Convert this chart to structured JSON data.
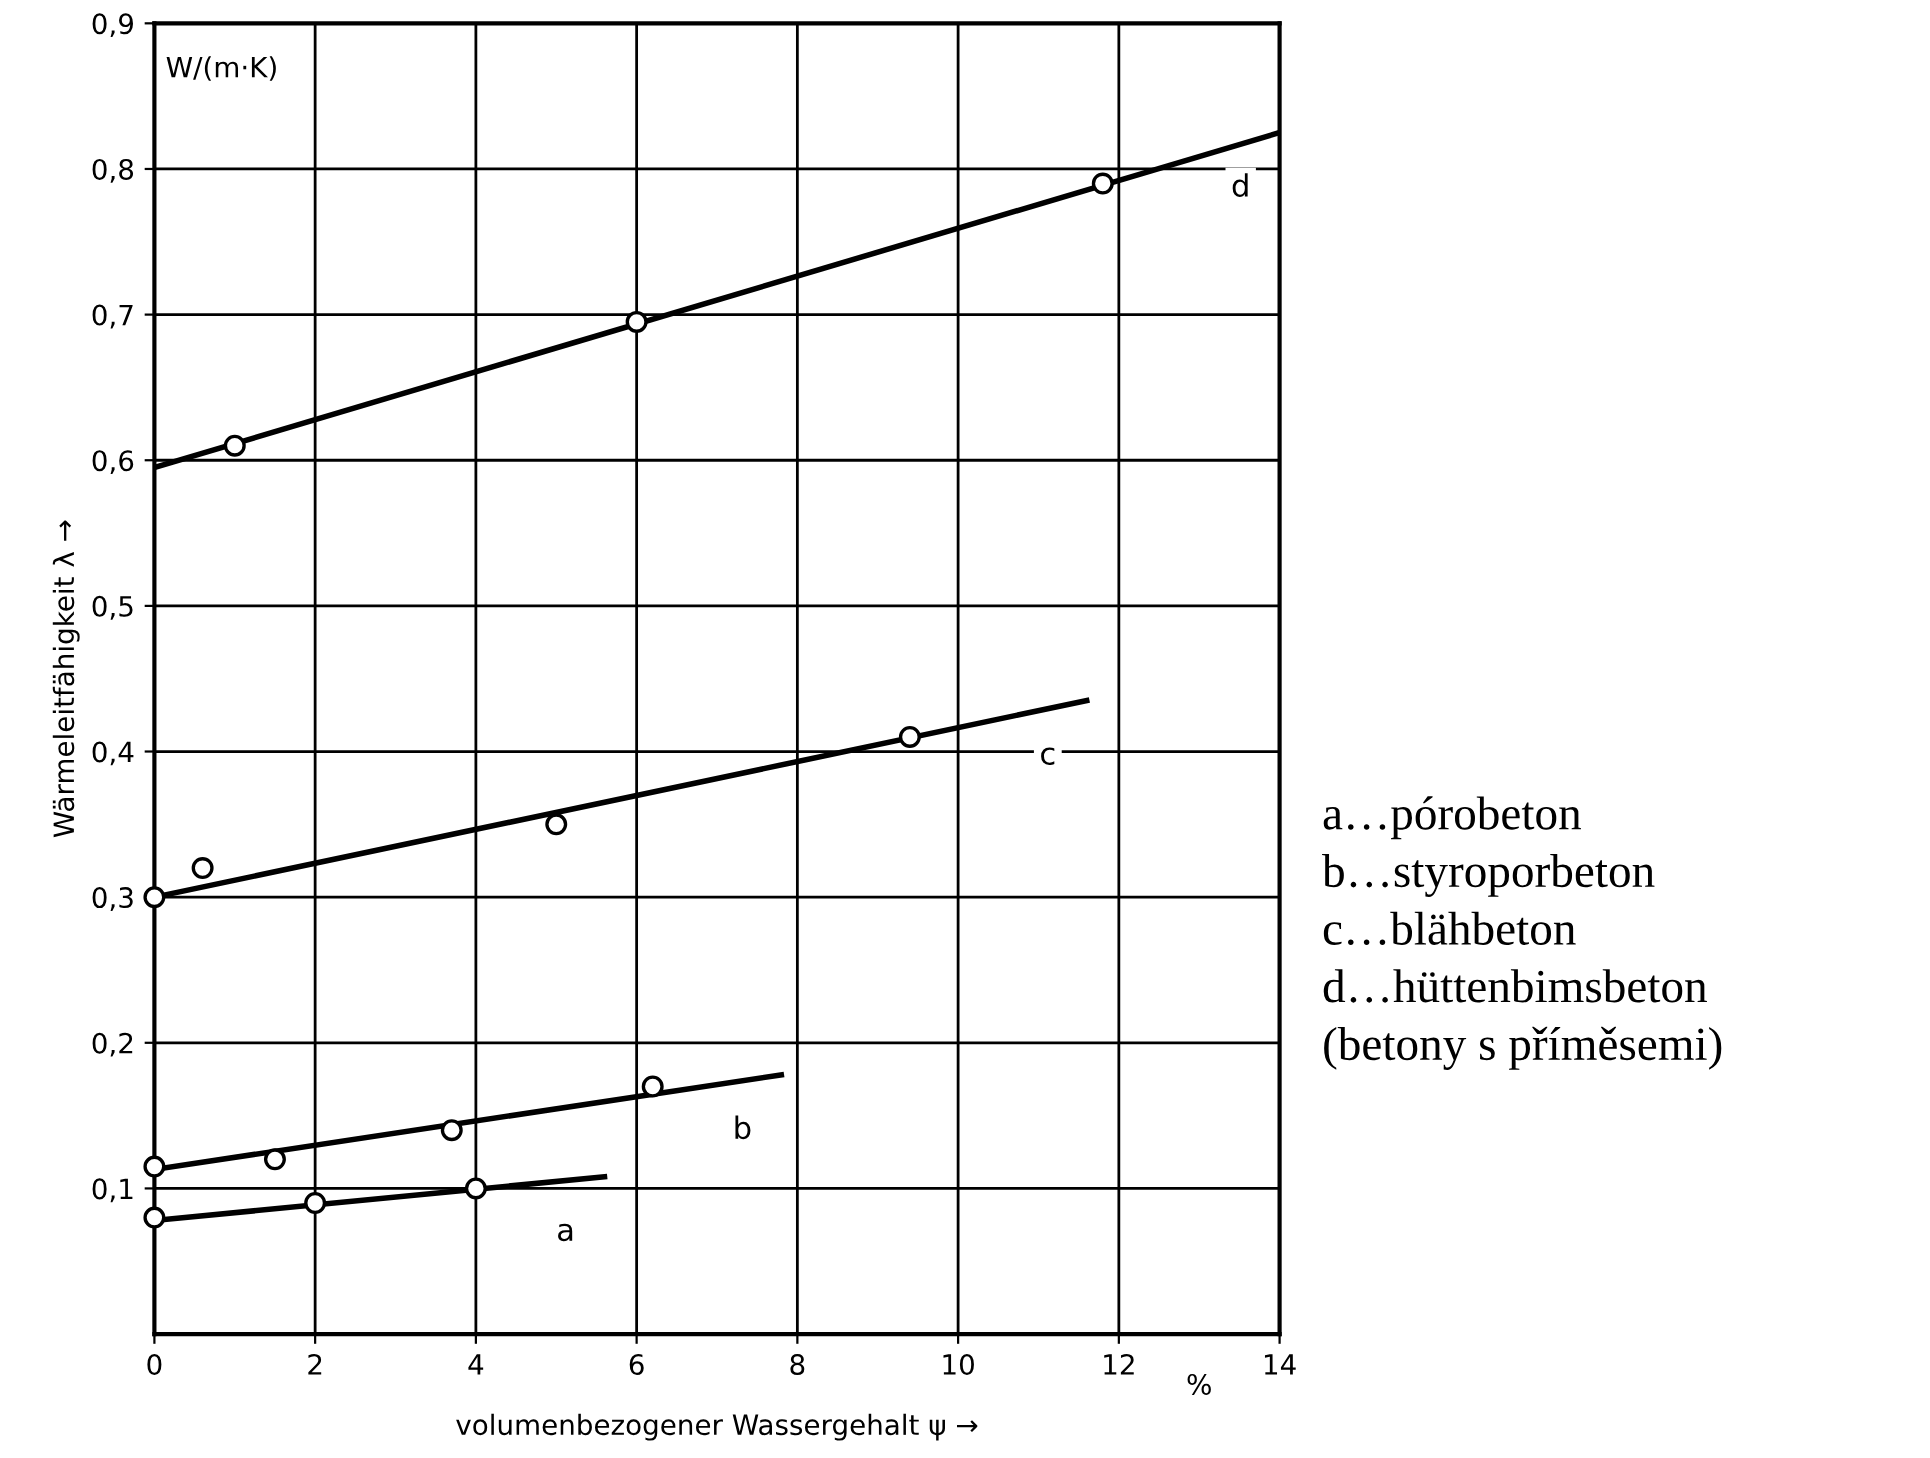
{
  "chart_data": {
    "type": "line",
    "xlabel": "volumenbezogener Wassergehalt ψ →",
    "ylabel": "Wärmeleitfähigkeit λ →",
    "annotations": [
      "W/(m·K)",
      "a…pórobeton\nb…styroporbeton\nc…blähbeton\nd…hüttenbimsbeton\n(betony s příměsemi)",
      "%"
    ],
    "xlim": [
      0,
      14
    ],
    "ylim": [
      0,
      0.9
    ],
    "xticks": [
      0,
      2,
      4,
      6,
      8,
      10,
      12,
      14
    ],
    "yticks": [
      {
        "value": 0.1,
        "label": "0,1"
      },
      {
        "value": 0.2,
        "label": "0,2"
      },
      {
        "value": 0.3,
        "label": "0,3"
      },
      {
        "value": 0.4,
        "label": "0,4"
      },
      {
        "value": 0.5,
        "label": "0,5"
      },
      {
        "value": 0.6,
        "label": "0,6"
      },
      {
        "value": 0.7,
        "label": "0,7"
      },
      {
        "value": 0.8,
        "label": "0,8"
      },
      {
        "value": 0.9,
        "label": "0,9"
      }
    ],
    "grid": true,
    "legend": false,
    "series": [
      {
        "type": "scatter",
        "color": "#000000",
        "marker": "circle",
        "x": [
          0,
          2,
          4
        ],
        "values": [
          0.08,
          0.09,
          0.1
        ]
      },
      {
        "name": "a",
        "color": "#000000",
        "marker": "none",
        "line_style": "solid",
        "x": [
          0,
          5.6
        ],
        "values": [
          0.078,
          0.108
        ]
      },
      {
        "type": "scatter",
        "color": "#000000",
        "marker": "circle",
        "x": [
          0,
          1.5,
          3.7,
          6.2
        ],
        "values": [
          0.115,
          0.12,
          0.14,
          0.17
        ]
      },
      {
        "name": "b",
        "color": "#000000",
        "marker": "none",
        "line_style": "solid",
        "x": [
          0,
          7.8
        ],
        "values": [
          0.113,
          0.178
        ]
      },
      {
        "type": "scatter",
        "color": "#000000",
        "marker": "circle",
        "x": [
          0,
          0.6,
          5,
          9.4
        ],
        "values": [
          0.3,
          0.32,
          0.35,
          0.41
        ]
      },
      {
        "name": "c",
        "color": "#000000",
        "marker": "none",
        "line_style": "solid",
        "x": [
          0,
          11.6
        ],
        "values": [
          0.3,
          0.435
        ]
      },
      {
        "type": "scatter",
        "color": "#000000",
        "marker": "circle",
        "x": [
          1,
          6,
          11.8
        ],
        "values": [
          0.61,
          0.695,
          0.79
        ]
      },
      {
        "name": "d",
        "color": "#000000",
        "marker": "none",
        "line_style": "solid",
        "x": [
          0,
          14
        ],
        "values": [
          0.595,
          0.825
        ]
      }
    ]
  }
}
